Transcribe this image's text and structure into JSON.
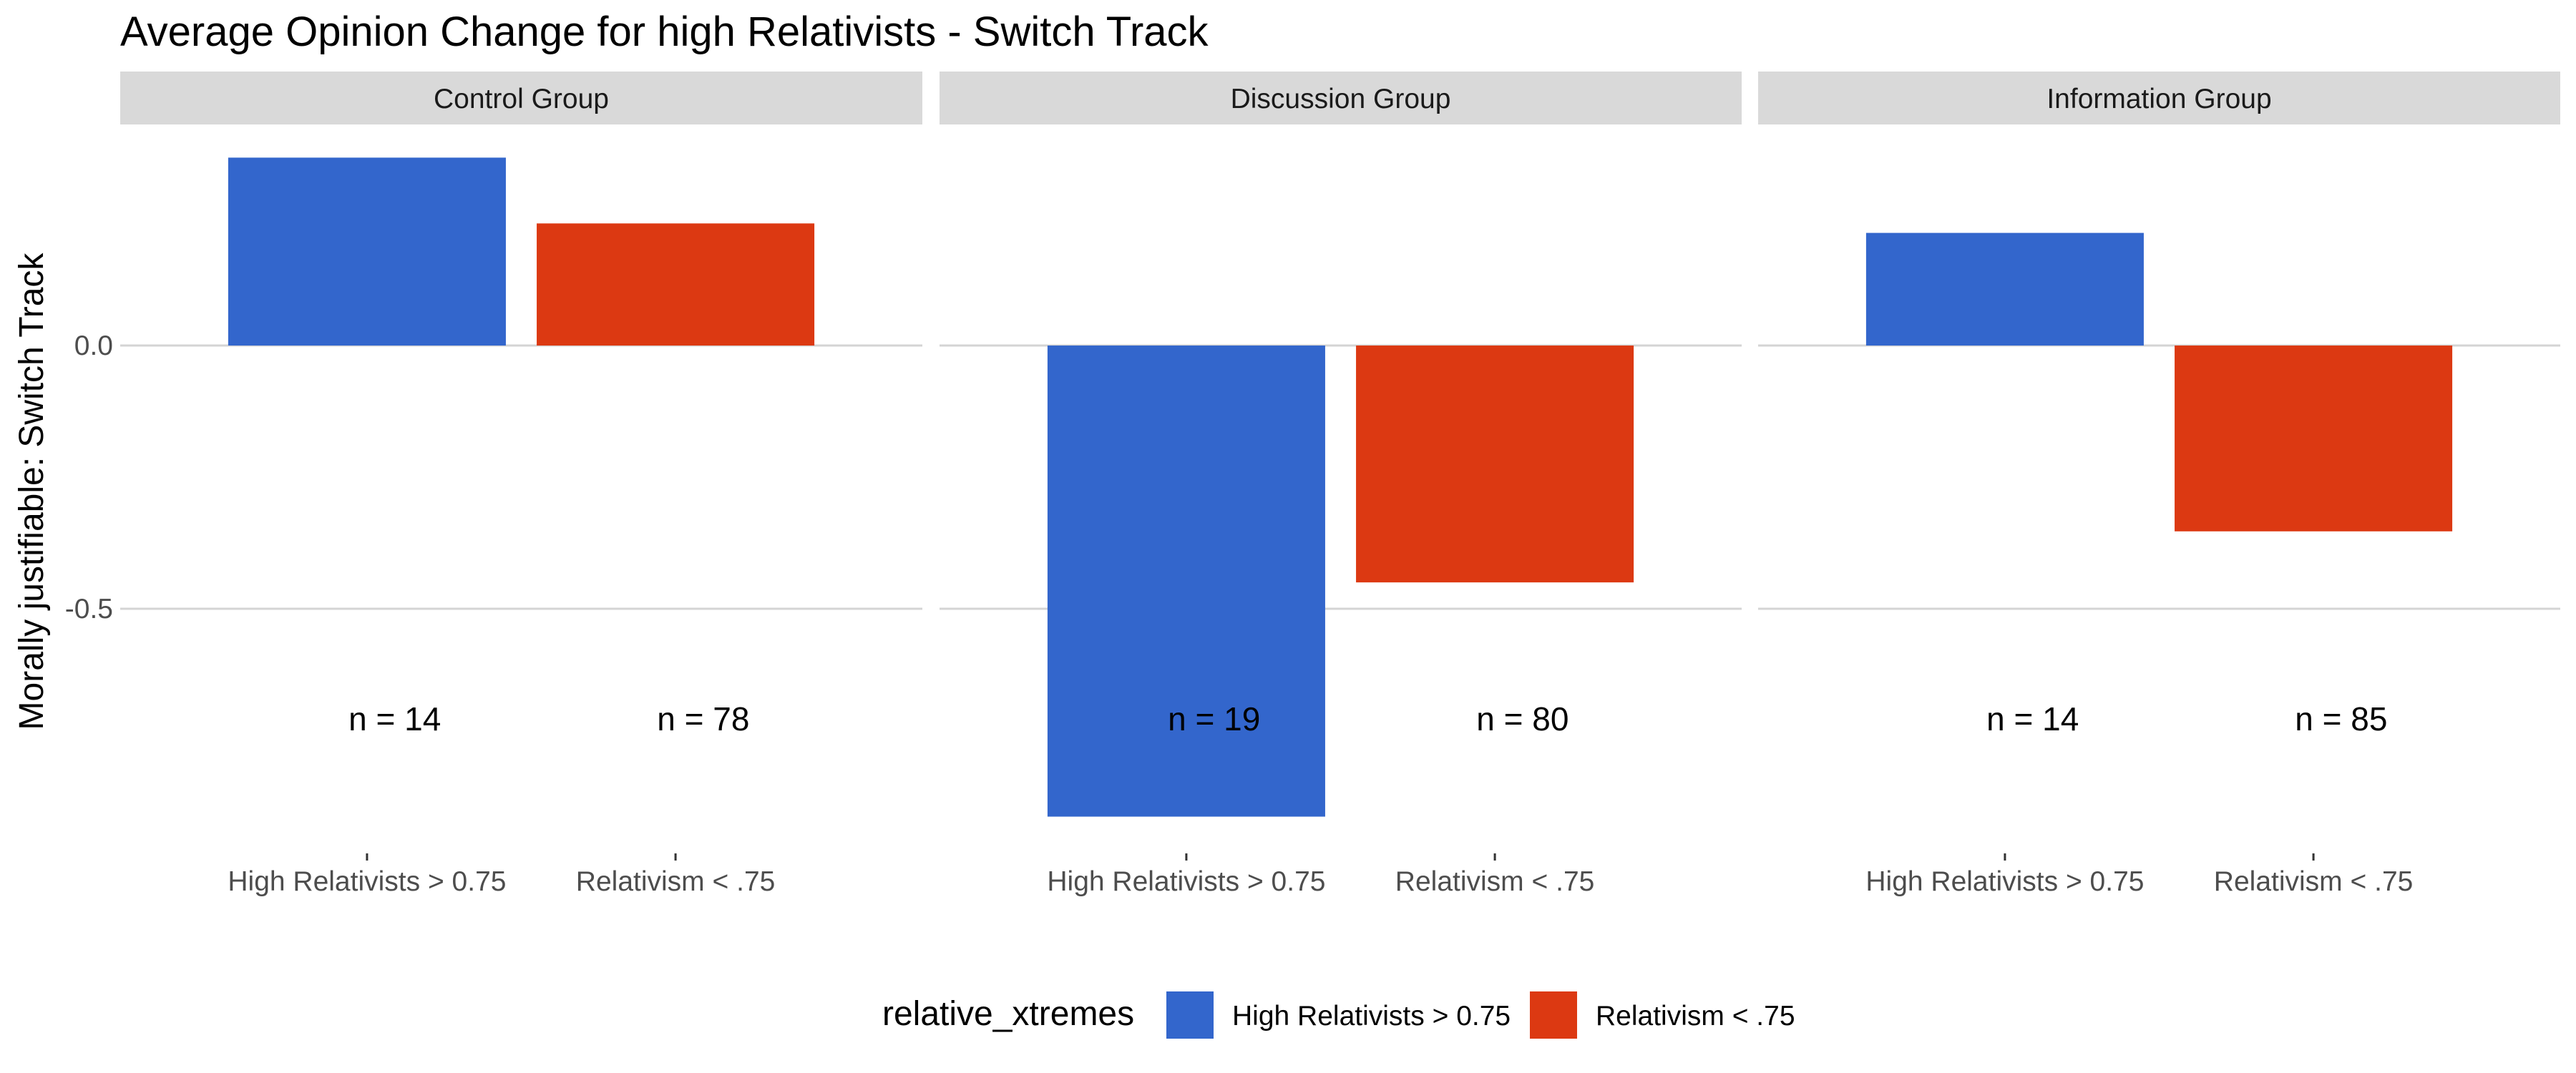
{
  "chart_data": {
    "type": "bar",
    "title": "Average Opinion Change for high Relativists - Switch Track",
    "ylabel": "Morally justifiable: Switch Track",
    "xlabel": "",
    "ylim": [
      -0.92,
      0.42
    ],
    "yticks": [
      0.0,
      -0.5
    ],
    "ytick_labels": [
      "0.0",
      "-0.5"
    ],
    "grid": "horizontal major",
    "categories": [
      "High Relativists > 0.75",
      "Relativism < .75"
    ],
    "colors": {
      "High Relativists > 0.75": "#3366CC",
      "Relativism < .75": "#DC3912"
    },
    "legend": {
      "title": "relative_xtremes",
      "position": "bottom",
      "entries": [
        "High Relativists > 0.75",
        "Relativism < .75"
      ]
    },
    "facets": [
      {
        "name": "Control Group",
        "values": [
          0.357,
          0.232
        ],
        "n_labels": [
          "n = 14",
          "n = 78"
        ]
      },
      {
        "name": "Discussion Group",
        "values": [
          -0.895,
          -0.45
        ],
        "n_labels": [
          "n = 19",
          "n = 80"
        ]
      },
      {
        "name": "Information Group",
        "values": [
          0.214,
          -0.353
        ],
        "n_labels": [
          "n = 14",
          "n = 85"
        ]
      }
    ]
  }
}
